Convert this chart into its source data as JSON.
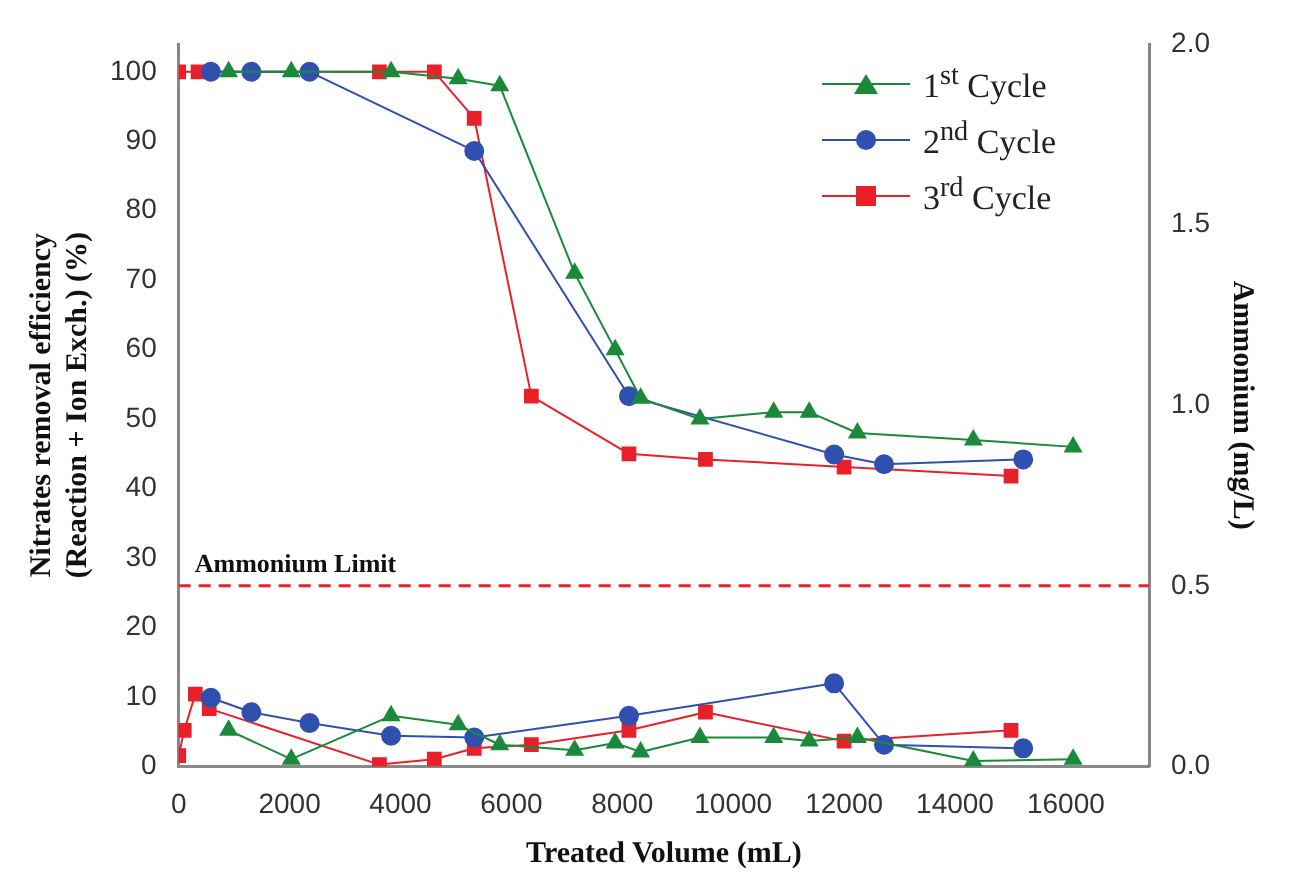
{
  "chart_data": {
    "type": "line",
    "xlabel": "Treated Volume (mL)",
    "ylabel": "Nitrates removal efficiency\n(Reaction + Ion Exch.) (%)",
    "y2label": "Ammonium (mg/L)",
    "xlim": [
      0,
      17500
    ],
    "xticks": [
      0,
      2000,
      4000,
      6000,
      8000,
      10000,
      12000,
      14000,
      16000
    ],
    "ylim": [
      0,
      104
    ],
    "yticks": [
      0,
      10,
      20,
      30,
      40,
      50,
      60,
      70,
      80,
      90,
      100
    ],
    "y2lim": [
      0,
      2
    ],
    "y2ticks": [
      {
        "value": 0,
        "label": "0.0"
      },
      0.5,
      {
        "value": 1,
        "label": "1.0"
      },
      1.5,
      {
        "value": 2,
        "label": "2.0"
      }
    ],
    "legend": "top right",
    "grid": false,
    "ref_lines": [
      {
        "axis": "y2",
        "value": 0.5,
        "label": "Ammonium Limit",
        "color": "#e8202a",
        "line_style": "dashed"
      }
    ],
    "series": [
      {
        "name": "1$^{st}$ Cycle",
        "color": "#1a8a3a",
        "marker": "triangle",
        "x": [
          900,
          2030,
          3830,
          5040,
          5790,
          7140,
          7870,
          8330,
          9400,
          10730,
          11370,
          12240,
          14330,
          16130
        ],
        "values": [
          100,
          100,
          100,
          99,
          98,
          71,
          60,
          53,
          50,
          51,
          51,
          48,
          47,
          46
        ]
      },
      {
        "name": "2$^{nd}$ Cycle",
        "color": "#3050b0",
        "marker": "circle",
        "x": [
          580,
          1310,
          2360,
          5330,
          8120,
          11820,
          12720,
          15230
        ],
        "values": [
          100,
          100,
          100,
          88.6,
          53.3,
          44.9,
          43.5,
          44.2
        ]
      },
      {
        "name": "3$^{rd}$ Cycle",
        "color": "#e8202a",
        "marker": "square",
        "x": [
          0,
          350,
          3620,
          4610,
          5330,
          6360,
          8120,
          9500,
          12000,
          15010
        ],
        "values": [
          100,
          100,
          100,
          100,
          93.3,
          53.3,
          45,
          44.2,
          43.1,
          41.8
        ]
      },
      {
        "color": "#1a8a3a",
        "marker": "triangle",
        "axis": "y2",
        "x": [
          900,
          2030,
          3830,
          5040,
          5790,
          7140,
          7870,
          8330,
          9400,
          10730,
          11370,
          12240,
          14330,
          16130
        ],
        "values": [
          0.1,
          0.02,
          0.14,
          0.115,
          0.06,
          0.045,
          0.065,
          0.04,
          0.08,
          0.08,
          0.07,
          0.08,
          0.015,
          0.02
        ]
      },
      {
        "color": "#3050b0",
        "marker": "circle",
        "axis": "y2",
        "x": [
          580,
          1310,
          2360,
          3830,
          5330,
          8120,
          11820,
          12720,
          15230
        ],
        "values": [
          0.19,
          0.15,
          0.12,
          0.085,
          0.08,
          0.14,
          0.23,
          0.06,
          0.05
        ]
      },
      {
        "color": "#e8202a",
        "marker": "square",
        "axis": "y2",
        "x": [
          0,
          100,
          300,
          550,
          3620,
          4610,
          5330,
          6360,
          8120,
          9500,
          12000,
          15010
        ],
        "values": [
          0.03,
          0.1,
          0.2,
          0.16,
          0.005,
          0.02,
          0.05,
          0.06,
          0.1,
          0.15,
          0.07,
          0.1
        ]
      }
    ]
  }
}
